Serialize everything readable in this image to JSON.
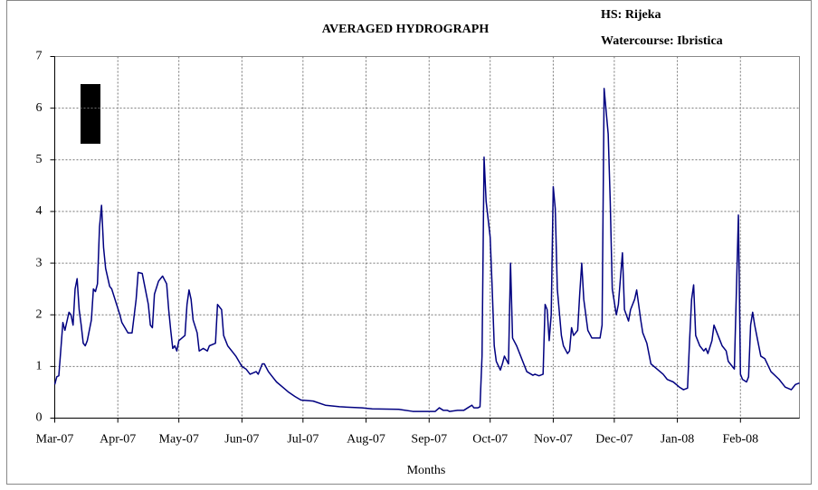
{
  "chart_data": {
    "type": "line",
    "title": "AVERAGED HYDROGRAPH",
    "annotations": [
      "HS: Rijeka",
      "Watercourse: Ibristica"
    ],
    "xlabel": "Months",
    "color": "#000080",
    "grid": true,
    "xlim": [
      0,
      366
    ],
    "xticks": [
      {
        "value": 0,
        "label": "Mar-07"
      },
      {
        "value": 31,
        "label": "Apr-07"
      },
      {
        "value": 61,
        "label": "May-07"
      },
      {
        "value": 92,
        "label": "Jun-07"
      },
      {
        "value": 122,
        "label": "Jul-07"
      },
      {
        "value": 153,
        "label": "Aug-07"
      },
      {
        "value": 184,
        "label": "Sep-07"
      },
      {
        "value": 214,
        "label": "Oct-07"
      },
      {
        "value": 245,
        "label": "Nov-07"
      },
      {
        "value": 275,
        "label": "Dec-07"
      },
      {
        "value": 306,
        "label": "Jan-08"
      },
      {
        "value": 337,
        "label": "Feb-08"
      }
    ],
    "ylim": [
      0,
      7
    ],
    "yticks": [
      0,
      1,
      2,
      3,
      4,
      5,
      6,
      7
    ],
    "x": [
      0,
      1,
      2,
      4,
      5,
      7,
      8,
      9,
      10,
      11,
      12,
      13,
      14,
      15,
      16,
      18,
      19,
      20,
      21,
      22,
      23,
      24,
      25,
      27,
      28,
      30,
      32,
      33,
      36,
      38,
      40,
      41,
      43,
      44,
      46,
      47,
      48,
      49,
      51,
      52,
      53,
      55,
      56,
      57,
      58,
      59,
      60,
      61,
      64,
      65,
      66,
      67,
      68,
      70,
      71,
      73,
      75,
      76,
      79,
      80,
      82,
      83,
      85,
      87,
      89,
      92,
      94,
      96,
      99,
      100,
      102,
      103,
      105,
      107,
      109,
      112,
      115,
      118,
      121,
      127,
      133,
      140,
      151,
      156,
      169,
      176,
      187,
      189,
      191,
      193,
      194,
      198,
      201,
      203,
      205,
      206,
      208,
      209,
      210,
      211,
      212,
      214,
      215,
      216,
      217,
      219,
      220,
      221,
      223,
      224,
      225,
      227,
      229,
      231,
      232,
      235,
      236,
      238,
      240,
      241,
      242,
      243,
      244,
      245,
      246,
      247,
      249,
      250,
      252,
      253,
      254,
      255,
      257,
      258,
      259,
      260,
      262,
      264,
      266,
      268,
      269,
      270,
      272,
      273,
      274,
      276,
      277,
      279,
      280,
      282,
      283,
      285,
      286,
      288,
      289,
      291,
      293,
      296,
      299,
      301,
      304,
      307,
      309,
      311,
      312,
      313,
      314,
      315,
      317,
      319,
      320,
      321,
      323,
      324,
      326,
      328,
      330,
      331,
      333,
      334,
      336,
      337,
      338,
      340,
      341,
      342,
      343,
      344,
      346,
      347,
      349,
      352,
      356,
      359,
      362,
      364,
      366
    ],
    "values": [
      0.65,
      0.8,
      0.82,
      1.85,
      1.7,
      2.05,
      2.0,
      1.8,
      2.5,
      2.7,
      2.1,
      1.8,
      1.45,
      1.4,
      1.5,
      1.9,
      2.5,
      2.45,
      2.6,
      3.7,
      4.12,
      3.3,
      2.9,
      2.55,
      2.5,
      2.25,
      2.0,
      1.85,
      1.65,
      1.65,
      2.3,
      2.82,
      2.8,
      2.6,
      2.2,
      1.8,
      1.75,
      2.4,
      2.65,
      2.7,
      2.75,
      2.6,
      2.1,
      1.7,
      1.35,
      1.4,
      1.3,
      1.5,
      1.6,
      2.2,
      2.48,
      2.3,
      1.9,
      1.65,
      1.3,
      1.35,
      1.3,
      1.4,
      1.45,
      2.2,
      2.1,
      1.6,
      1.4,
      1.3,
      1.2,
      1.0,
      0.95,
      0.85,
      0.9,
      0.85,
      1.05,
      1.05,
      0.9,
      0.8,
      0.7,
      0.6,
      0.5,
      0.42,
      0.35,
      0.33,
      0.25,
      0.22,
      0.2,
      0.18,
      0.17,
      0.13,
      0.13,
      0.2,
      0.15,
      0.15,
      0.13,
      0.15,
      0.15,
      0.2,
      0.25,
      0.2,
      0.2,
      0.22,
      1.2,
      5.05,
      4.2,
      3.5,
      2.5,
      1.4,
      1.1,
      0.93,
      1.05,
      1.2,
      1.05,
      3.0,
      1.55,
      1.4,
      1.2,
      1.0,
      0.9,
      0.83,
      0.85,
      0.82,
      0.85,
      2.2,
      2.1,
      1.5,
      2.0,
      4.48,
      4.05,
      2.5,
      1.6,
      1.4,
      1.25,
      1.3,
      1.75,
      1.6,
      1.7,
      2.4,
      3.0,
      2.3,
      1.7,
      1.55,
      1.55,
      1.55,
      1.8,
      6.38,
      5.5,
      4.2,
      2.5,
      2.0,
      2.2,
      3.2,
      2.1,
      1.88,
      2.1,
      2.3,
      2.48,
      1.9,
      1.65,
      1.45,
      1.05,
      0.95,
      0.85,
      0.75,
      0.7,
      0.6,
      0.55,
      0.58,
      1.5,
      2.3,
      2.58,
      1.6,
      1.4,
      1.3,
      1.35,
      1.25,
      1.5,
      1.8,
      1.6,
      1.4,
      1.3,
      1.1,
      1.0,
      0.95,
      3.93,
      0.85,
      0.75,
      0.7,
      0.8,
      1.8,
      2.05,
      1.8,
      1.4,
      1.2,
      1.15,
      0.9,
      0.75,
      0.6,
      0.55,
      0.65,
      0.68
    ]
  }
}
